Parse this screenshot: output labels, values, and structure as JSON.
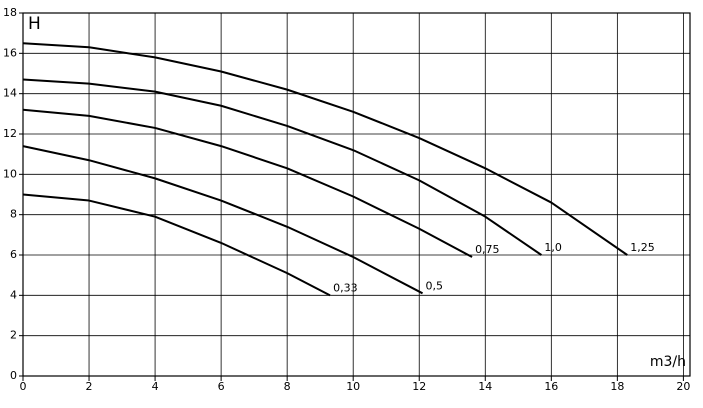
{
  "chart_data": {
    "type": "line",
    "y_label": "H",
    "x_label": "m3/h",
    "xlim": [
      0,
      20.2
    ],
    "ylim": [
      0,
      18
    ],
    "xticks": [
      0,
      2,
      4,
      6,
      8,
      10,
      12,
      14,
      16,
      18,
      20
    ],
    "yticks": [
      0,
      2,
      4,
      6,
      8,
      10,
      12,
      14,
      16,
      18
    ],
    "grid": true,
    "color": "#000000",
    "series": [
      {
        "name": "0,33",
        "x": [
          0,
          2,
          4,
          6,
          8,
          9.3
        ],
        "values": [
          9.0,
          8.7,
          7.9,
          6.6,
          5.1,
          4.0
        ]
      },
      {
        "name": "0,5",
        "x": [
          0,
          2,
          4,
          6,
          8,
          10,
          12.1
        ],
        "values": [
          11.4,
          10.7,
          9.8,
          8.7,
          7.4,
          5.9,
          4.1
        ]
      },
      {
        "name": "0,75",
        "x": [
          0,
          2,
          4,
          6,
          8,
          10,
          12,
          13.6
        ],
        "values": [
          13.2,
          12.9,
          12.3,
          11.4,
          10.3,
          8.9,
          7.3,
          5.9
        ]
      },
      {
        "name": "1,0",
        "x": [
          0,
          2,
          4,
          6,
          8,
          10,
          12,
          14,
          15.7
        ],
        "values": [
          14.7,
          14.5,
          14.1,
          13.4,
          12.4,
          11.2,
          9.7,
          7.9,
          6.0
        ]
      },
      {
        "name": "1,25",
        "x": [
          0,
          2,
          4,
          6,
          8,
          10,
          12,
          14,
          16,
          18.3
        ],
        "values": [
          16.5,
          16.3,
          15.8,
          15.1,
          14.2,
          13.1,
          11.8,
          10.3,
          8.6,
          6.0
        ]
      }
    ]
  }
}
